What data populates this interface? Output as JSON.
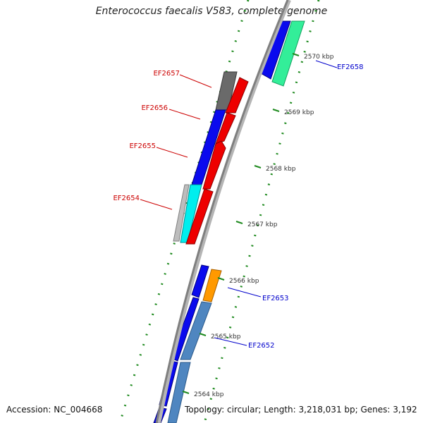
{
  "title": "Enterococcus faecalis V583, complete genome",
  "footer": {
    "accession": "Accession: NC_004668",
    "stats": "Topology: circular; Length: 3,218,031 bp; Genes: 3,192"
  },
  "colors": {
    "backbone": "#7f7f7f",
    "tick": "#1e8a1e",
    "forward_label": "#0000cc",
    "reverse_label": "#cc0000"
  },
  "position_ticks": [
    {
      "label": "2570 kbp"
    },
    {
      "label": "2569 kbp"
    },
    {
      "label": "2568 kbp"
    },
    {
      "label": "2567 kbp"
    },
    {
      "label": "2566 kbp"
    },
    {
      "label": "2565 kbp"
    },
    {
      "label": "2564 kbp"
    }
  ],
  "gene_labels": [
    {
      "name": "EF2658",
      "strand": "forward"
    },
    {
      "name": "EF2657",
      "strand": "reverse"
    },
    {
      "name": "EF2656",
      "strand": "reverse"
    },
    {
      "name": "EF2655",
      "strand": "reverse"
    },
    {
      "name": "EF2654",
      "strand": "reverse"
    },
    {
      "name": "EF2653",
      "strand": "forward"
    },
    {
      "name": "EF2652",
      "strand": "forward"
    }
  ]
}
